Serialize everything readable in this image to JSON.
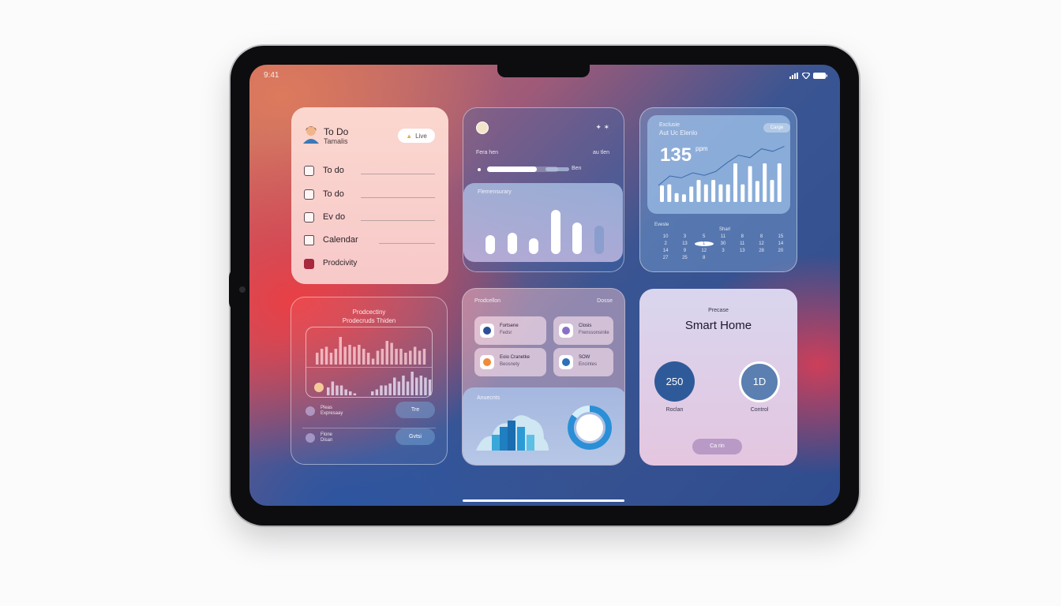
{
  "status_bar": {
    "time": "9:41",
    "icons": [
      "signal-icon",
      "wifi-icon",
      "battery-icon"
    ]
  },
  "todo_widget": {
    "title": "To Do",
    "subtitle": "Tamalis",
    "button_label": "Live",
    "items": [
      {
        "label": "To do",
        "type": "checkbox",
        "checked": false
      },
      {
        "label": "To do",
        "type": "checkbox",
        "checked": false
      },
      {
        "label": "Ev do",
        "type": "checkbox",
        "checked": false
      },
      {
        "label": "Calendar",
        "type": "calendar-icon"
      },
      {
        "label": "Prodcivity",
        "type": "productivity-icon"
      }
    ]
  },
  "activity_widget": {
    "header": "Fera hen",
    "header_right": "au tlen",
    "progress": 0.7,
    "progress_label": "Ben",
    "chart_title": "Flemensurary",
    "bars": [
      3,
      3.4,
      2.5,
      7,
      5,
      4.5
    ]
  },
  "stats_widget": {
    "label": "Exclusie",
    "title": "Aut Uc Elenlo",
    "button_label": "Carge",
    "value": "135",
    "unit": "ppm",
    "bars": [
      3,
      3.2,
      1.6,
      1.4,
      2.8,
      4,
      3.2,
      4,
      3.2,
      3.2,
      7,
      3.2,
      6.5,
      3.8,
      7,
      4,
      7
    ],
    "trend": [
      2,
      3.5,
      3.2,
      4,
      3.6,
      4.2,
      5.6,
      6.8,
      6.4,
      7.8,
      7.4,
      8.2
    ],
    "calendar": {
      "month": "Eveste",
      "header": "Sharl",
      "days": [
        "10",
        "3",
        "5",
        "11",
        "8",
        "8",
        "15",
        "2",
        "13",
        "1",
        "30",
        "11",
        "12",
        "14",
        "14",
        "9",
        "12",
        "3",
        "13",
        "28",
        "20",
        "27",
        "25",
        "8"
      ]
    }
  },
  "productivity_widget": {
    "title": "Prodcectiny",
    "subtitle": "Prodecruds Thiden",
    "bars_top": [
      3,
      4,
      4.5,
      3,
      4,
      7,
      4.5,
      5,
      4.5,
      5,
      4,
      3,
      1.5,
      3.5,
      4,
      6,
      5.5,
      4,
      4,
      3,
      3.5,
      4.5,
      3.5,
      4
    ],
    "bars_bottom": [
      2,
      3.5,
      2.5,
      2.5,
      1.5,
      1,
      0.5,
      0,
      0,
      0,
      1,
      1.5,
      2.5,
      2.5,
      3,
      4.5,
      3.5,
      5,
      3.5,
      6,
      4.5,
      5,
      4.5,
      4
    ],
    "rows": [
      {
        "title": "Pleas",
        "subtitle": "Expresaay",
        "button": "Tre"
      },
      {
        "title": "Flone",
        "subtitle": "Disan",
        "button": "Gvtsi"
      }
    ]
  },
  "apps_widget": {
    "title": "Prodcellon",
    "right_label": "Dosse",
    "tiles": [
      {
        "title": "Fortsene",
        "subtitle": "Fedsr",
        "icon": "shield-icon",
        "color": "#2f4e98"
      },
      {
        "title": "Closis",
        "subtitle": "Frenssonsinlie",
        "icon": "app-icon",
        "color": "#8b6fc7"
      },
      {
        "title": "Eoio Cranetke",
        "subtitle": "Beosnety",
        "icon": "shapes-icon",
        "color": "#f08a3c"
      },
      {
        "title": "SOW",
        "subtitle": "Encintes",
        "icon": "compass-icon",
        "color": "#2f6fb8"
      }
    ],
    "bottom_label": "Anuecnts",
    "donut_fraction": 0.85
  },
  "smart_home_widget": {
    "label": "Precase",
    "title": "Smart Home",
    "dials": [
      {
        "value": "250",
        "label": "Roclan"
      },
      {
        "value": "1D",
        "label": "Control"
      }
    ],
    "button_label": "Ca rin"
  }
}
